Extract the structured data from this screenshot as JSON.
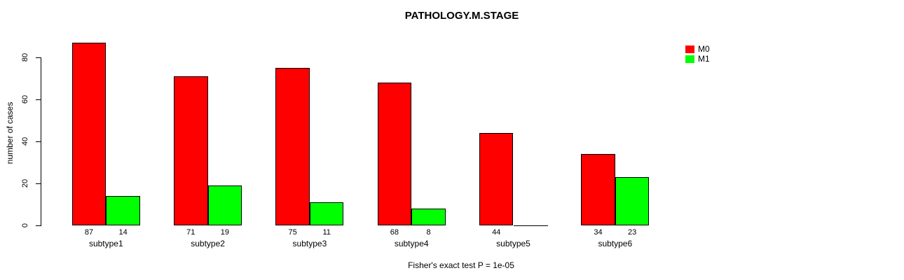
{
  "chart_data": {
    "type": "bar",
    "title": "PATHOLOGY.M.STAGE",
    "ylabel": "number of cases",
    "xlabel": "",
    "annotation": "Fisher's exact test P = 1e-05",
    "categories": [
      "subtype1",
      "subtype2",
      "subtype3",
      "subtype4",
      "subtype5",
      "subtype6"
    ],
    "series": [
      {
        "name": "M0",
        "color": "#FF0000",
        "values": [
          87,
          71,
          75,
          68,
          44,
          34
        ]
      },
      {
        "name": "M1",
        "color": "#00FF00",
        "values": [
          14,
          19,
          11,
          8,
          0,
          23
        ]
      }
    ],
    "yticks": [
      0,
      20,
      40,
      60,
      80
    ],
    "ylim": [
      0,
      88
    ],
    "grid": false,
    "legend_position": "top-right",
    "value_labels": "counts shown under each bar; zero values unlabeled",
    "axis_color": "#000000",
    "background_color": "#FFFFFF"
  }
}
